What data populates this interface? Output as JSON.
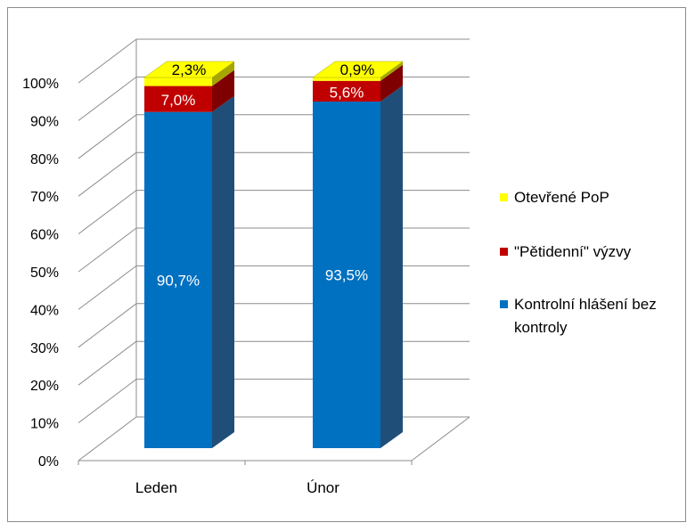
{
  "chart_data": {
    "type": "bar",
    "stacked": true,
    "percent_stacked": true,
    "three_d": true,
    "categories": [
      "Leden",
      "Únor"
    ],
    "series": [
      {
        "name": "Kontrolní hlášení bez kontroly",
        "values": [
          90.7,
          93.5
        ],
        "labels": [
          "90,7%",
          "93,5%"
        ],
        "color": "#0070C0",
        "side_color": "#1F4E79",
        "label_color": "#ffffff"
      },
      {
        "name": "\"Pětidenní\" výzvy",
        "values": [
          7.0,
          5.6
        ],
        "labels": [
          "7,0%",
          "5,6%"
        ],
        "color": "#C00000",
        "side_color": "#7F0000",
        "label_color": "#ffffff"
      },
      {
        "name": "Otevřené PoP",
        "values": [
          2.3,
          0.9
        ],
        "labels": [
          "2,3%",
          "0,9%"
        ],
        "color": "#FFFF00",
        "side_color": "#A6A600",
        "label_color": "#000000"
      }
    ],
    "y_ticks": [
      "0%",
      "10%",
      "20%",
      "30%",
      "40%",
      "50%",
      "60%",
      "70%",
      "80%",
      "90%",
      "100%"
    ],
    "ylim": [
      0,
      100
    ],
    "grid": true,
    "legend_position": "right",
    "title": "",
    "xlabel": "",
    "ylabel": ""
  }
}
